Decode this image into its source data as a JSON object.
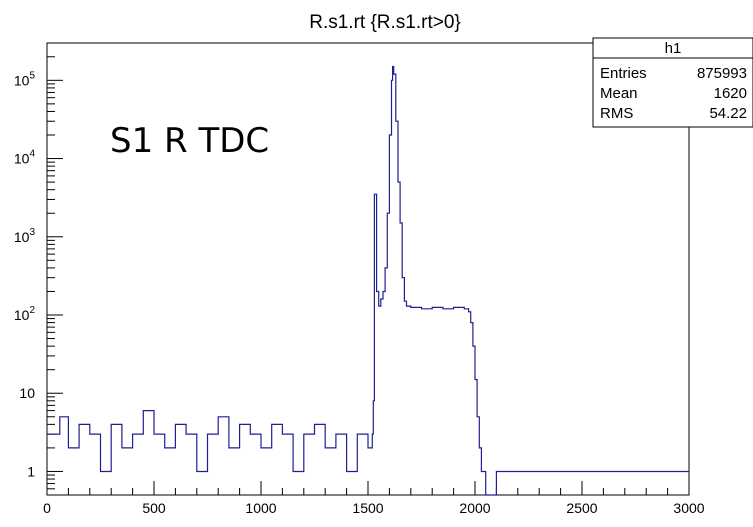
{
  "chart_data": {
    "type": "line",
    "title": "R.s1.rt {R.s1.rt>0}",
    "annotation": "S1 R TDC",
    "xlabel": "",
    "ylabel": "",
    "xlim": [
      0,
      3000
    ],
    "ylim": [
      0.5,
      300000
    ],
    "y_scale": "log",
    "x_ticks": [
      0,
      500,
      1000,
      1500,
      2000,
      2500,
      3000
    ],
    "y_ticks": [
      {
        "value": 1,
        "base": "1",
        "exp": ""
      },
      {
        "value": 10,
        "base": "10",
        "exp": ""
      },
      {
        "value": 100,
        "base": "10",
        "exp": "2"
      },
      {
        "value": 1000,
        "base": "10",
        "exp": "3"
      },
      {
        "value": 10000,
        "base": "10",
        "exp": "4"
      },
      {
        "value": 100000,
        "base": "10",
        "exp": "5"
      }
    ],
    "line_color": "#1f1f8f",
    "stats_box": {
      "title": "h1",
      "rows": [
        {
          "label": "Entries",
          "value": "875993"
        },
        {
          "label": "Mean",
          "value": "1620"
        },
        {
          "label": "RMS",
          "value": "54.22"
        }
      ]
    },
    "series": [
      {
        "points": [
          [
            0,
            3
          ],
          [
            30,
            3
          ],
          [
            60,
            5
          ],
          [
            100,
            2
          ],
          [
            150,
            4
          ],
          [
            200,
            3
          ],
          [
            250,
            1
          ],
          [
            300,
            4
          ],
          [
            350,
            2
          ],
          [
            400,
            3
          ],
          [
            450,
            6
          ],
          [
            500,
            3
          ],
          [
            550,
            2
          ],
          [
            600,
            4
          ],
          [
            650,
            3
          ],
          [
            700,
            1
          ],
          [
            750,
            3
          ],
          [
            800,
            5
          ],
          [
            850,
            2
          ],
          [
            900,
            4
          ],
          [
            950,
            3
          ],
          [
            1000,
            2
          ],
          [
            1050,
            4
          ],
          [
            1100,
            3
          ],
          [
            1150,
            1
          ],
          [
            1200,
            3
          ],
          [
            1250,
            4
          ],
          [
            1300,
            2
          ],
          [
            1350,
            3
          ],
          [
            1400,
            1
          ],
          [
            1450,
            3
          ],
          [
            1500,
            2
          ],
          [
            1520,
            3
          ],
          [
            1525,
            8
          ],
          [
            1530,
            3500
          ],
          [
            1540,
            200
          ],
          [
            1550,
            130
          ],
          [
            1560,
            160
          ],
          [
            1570,
            200
          ],
          [
            1580,
            400
          ],
          [
            1590,
            2000
          ],
          [
            1600,
            20000
          ],
          [
            1610,
            100000
          ],
          [
            1615,
            150000
          ],
          [
            1620,
            120000
          ],
          [
            1630,
            30000
          ],
          [
            1640,
            5000
          ],
          [
            1650,
            1500
          ],
          [
            1660,
            300
          ],
          [
            1670,
            150
          ],
          [
            1680,
            130
          ],
          [
            1700,
            125
          ],
          [
            1750,
            120
          ],
          [
            1800,
            125
          ],
          [
            1850,
            120
          ],
          [
            1900,
            125
          ],
          [
            1950,
            120
          ],
          [
            1970,
            110
          ],
          [
            1980,
            80
          ],
          [
            1990,
            40
          ],
          [
            2000,
            15
          ],
          [
            2010,
            5
          ],
          [
            2020,
            2
          ],
          [
            2030,
            1
          ],
          [
            2050,
            0.5
          ],
          [
            2100,
            1
          ],
          [
            2200,
            1
          ],
          [
            2300,
            1
          ],
          [
            2400,
            1
          ],
          [
            2500,
            1
          ],
          [
            2600,
            1
          ],
          [
            2700,
            1
          ],
          [
            2800,
            1
          ],
          [
            2900,
            1
          ],
          [
            3000,
            1
          ]
        ]
      }
    ]
  }
}
